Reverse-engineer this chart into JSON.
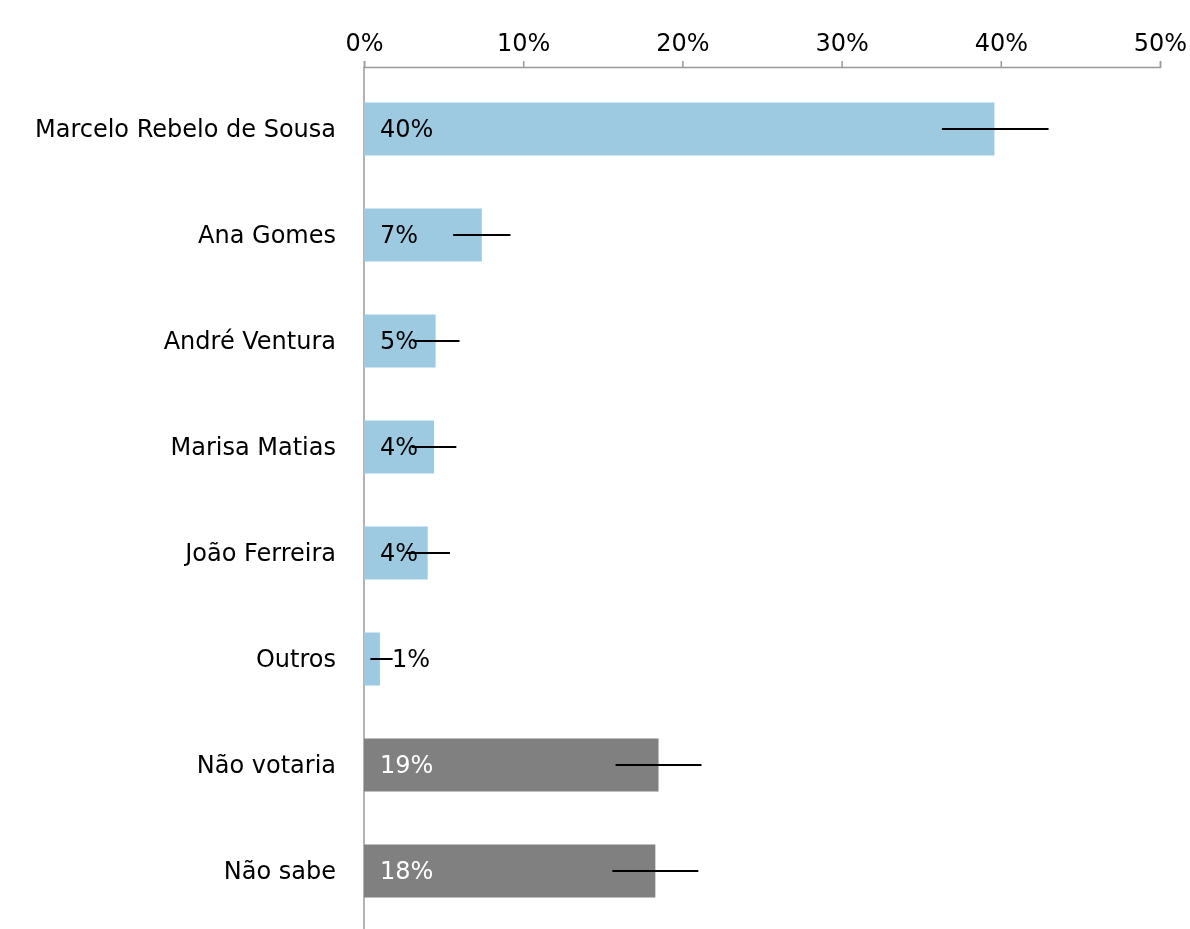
{
  "chart_data": {
    "type": "bar",
    "orientation": "horizontal",
    "categories": [
      "Marcelo Rebelo de Sousa",
      "Ana Gomes",
      "André Ventura",
      "Marisa Matias",
      "João Ferreira",
      "Outros",
      "Não votaria",
      "Não sabe"
    ],
    "values": [
      39.6,
      7.4,
      4.5,
      4.4,
      4.0,
      1.0,
      18.5,
      18.3
    ],
    "colors": [
      "#9ecae1",
      "#9ecae1",
      "#9ecae1",
      "#9ecae1",
      "#9ecae1",
      "#9ecae1",
      "#808080",
      "#808080"
    ],
    "errors": [
      [
        36.3,
        43.0
      ],
      [
        5.6,
        9.2
      ],
      [
        3.1,
        6.0
      ],
      [
        3.0,
        5.8
      ],
      [
        2.6,
        5.4
      ],
      [
        0.4,
        1.8
      ],
      [
        15.8,
        21.2
      ],
      [
        15.6,
        21.0
      ]
    ],
    "value_labels": [
      "40%",
      "7%",
      "5%",
      "4%",
      "4%",
      "1%",
      "19%",
      "18%"
    ],
    "xlim": [
      0,
      50
    ],
    "xticks": [
      {
        "value": 0,
        "label": "0%"
      },
      {
        "value": 10,
        "label": "10%"
      },
      {
        "value": 20,
        "label": "20%"
      },
      {
        "value": 30,
        "label": "30%"
      },
      {
        "value": 40,
        "label": "40%"
      },
      {
        "value": 50,
        "label": "50%"
      }
    ],
    "grid": false
  }
}
